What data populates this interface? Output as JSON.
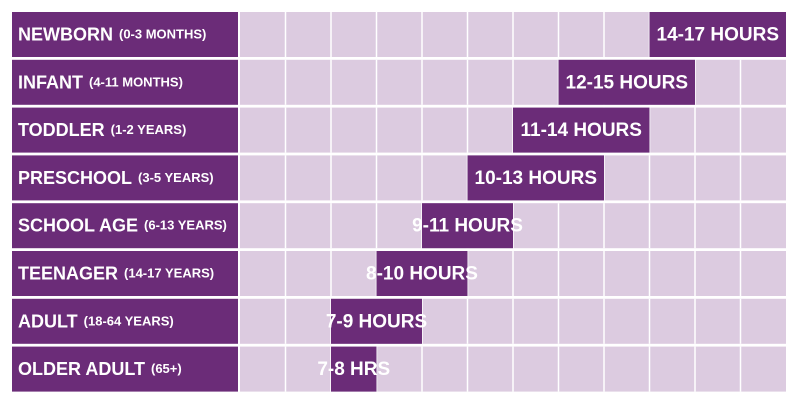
{
  "chart_data": {
    "type": "range-bar",
    "categories": [
      "NEWBORN",
      "INFANT",
      "TODDLER",
      "PRESCHOOL",
      "SCHOOL AGE",
      "TEENAGER",
      "ADULT",
      "OLDER ADULT"
    ],
    "age_ranges": [
      "(0-3 MONTHS)",
      "(4-11 MONTHS)",
      "(1-2 YEARS)",
      "(3-5 YEARS)",
      "(6-13 YEARS)",
      "(14-17 YEARS)",
      "(18-64 YEARS)",
      "(65+)"
    ],
    "low": [
      14,
      12,
      11,
      10,
      9,
      8,
      7,
      7
    ],
    "high": [
      17,
      15,
      14,
      13,
      11,
      10,
      9,
      8
    ],
    "value_labels": [
      "14-17 HOURS",
      "12-15 HOURS",
      "11-14 HOURS",
      "10-13 HOURS",
      "9-11 HOURS",
      "8-10 HOURS",
      "7-9 HOURS",
      "7-8 HRS"
    ],
    "xlim": [
      5,
      17
    ],
    "color": "#6b2c78",
    "background": "#dccbe0"
  }
}
